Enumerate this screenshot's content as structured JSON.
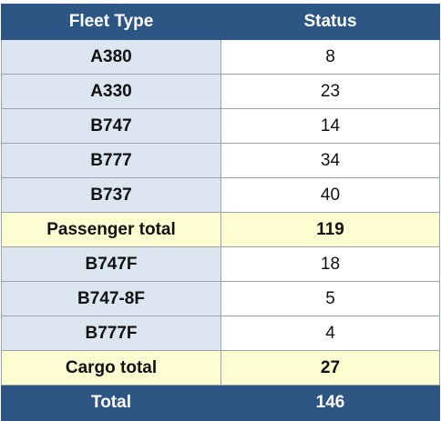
{
  "header": {
    "fleet_type": "Fleet Type",
    "status": "Status"
  },
  "passenger_rows": [
    {
      "type": "A380",
      "status": "8"
    },
    {
      "type": "A330",
      "status": "23"
    },
    {
      "type": "B747",
      "status": "14"
    },
    {
      "type": "B777",
      "status": "34"
    },
    {
      "type": "B737",
      "status": "40"
    }
  ],
  "passenger_total": {
    "label": "Passenger total",
    "value": "119"
  },
  "cargo_rows": [
    {
      "type": "B747F",
      "status": "18"
    },
    {
      "type": "B747-8F",
      "status": "5"
    },
    {
      "type": "B777F",
      "status": "4"
    }
  ],
  "cargo_total": {
    "label": "Cargo total",
    "value": "27"
  },
  "grand_total": {
    "label": "Total",
    "value": "146"
  },
  "colors": {
    "header_bg": "#2d5684",
    "type_cell_bg": "#dce6f1",
    "subtotal_bg": "#fefdd2"
  }
}
